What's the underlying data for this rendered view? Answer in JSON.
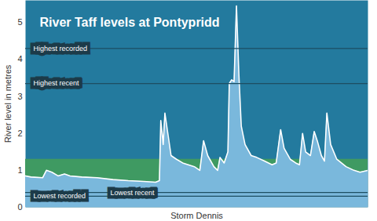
{
  "chart_data": {
    "type": "area",
    "title": "River Taff levels at Pontypridd",
    "x_label": "Storm Dennis",
    "y_label": "River level in metres",
    "x": [
      0,
      1.6,
      5,
      6.1,
      7.7,
      9.5,
      11.4,
      13,
      16.4,
      20.9,
      25.5,
      30,
      34.5,
      38,
      39.1,
      39.5,
      40.2,
      40.7,
      41.4,
      42.5,
      44.1,
      45.9,
      49.3,
      50.9,
      52,
      53.2,
      55,
      56.1,
      56.8,
      58,
      59.1,
      59.5,
      60.2,
      60.9,
      61.6,
      62.3,
      63,
      64.1,
      65.9,
      67.5,
      69.8,
      72,
      73.2,
      74.5,
      75.5,
      77.3,
      78.9,
      80,
      80.9,
      81.8,
      83.2,
      84.3,
      85.2,
      86.4,
      87.3,
      88,
      89.1,
      90.9,
      93.6,
      95.9,
      97.7,
      100
    ],
    "values": [
      0.85,
      0.82,
      0.8,
      1.0,
      0.95,
      0.85,
      0.9,
      0.85,
      0.82,
      0.8,
      0.75,
      0.72,
      0.7,
      0.68,
      0.72,
      2.35,
      1.7,
      2.55,
      2.1,
      1.4,
      1.3,
      1.2,
      1.1,
      1.0,
      1.8,
      1.4,
      1.1,
      1.0,
      1.35,
      1.2,
      1.5,
      3.35,
      3.45,
      3.4,
      5.45,
      3.6,
      2.2,
      1.7,
      1.4,
      1.35,
      1.25,
      1.15,
      1.2,
      2.1,
      1.6,
      1.3,
      1.2,
      1.15,
      2.0,
      1.5,
      1.4,
      2.05,
      1.8,
      1.4,
      1.25,
      2.55,
      1.7,
      1.3,
      1.1,
      1.0,
      0.95,
      1.0
    ],
    "color": "#7ab8dc",
    "xlim": [
      0,
      100
    ],
    "xticks": [],
    "ylim": [
      0,
      5.6
    ],
    "yticks": [
      0,
      1,
      2,
      3,
      4,
      5
    ],
    "tick_labels": "y",
    "grid": false,
    "band": [
      0,
      1.3
    ],
    "reference_lines": [
      {
        "label": "Highest recorded",
        "value": 4.3
      },
      {
        "label": "Highest recent",
        "value": 3.35
      },
      {
        "label": "Lowest recorded",
        "value": 0.3
      },
      {
        "label": "Lowest recent",
        "value": 0.4
      }
    ]
  }
}
